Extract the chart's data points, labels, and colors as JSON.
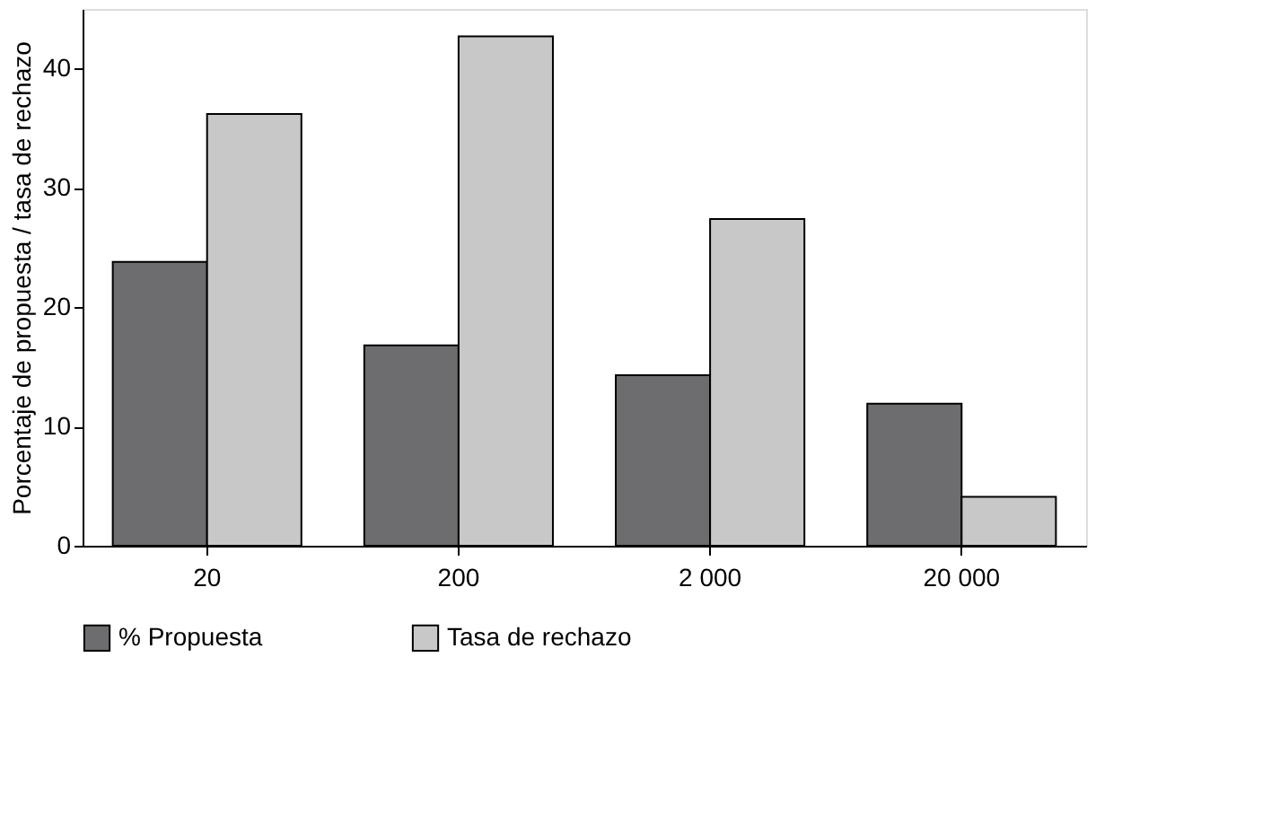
{
  "chart_data": {
    "type": "bar",
    "ylabel": "Porcentaje de propuesta / tasa de rechazo",
    "categories": [
      "20",
      "200",
      "2 000",
      "20 000"
    ],
    "series": [
      {
        "name": "% Propuesta",
        "color": "#6d6d6f",
        "values": [
          23.8,
          16.8,
          14.3,
          11.9
        ]
      },
      {
        "name": "Tasa de rechazo",
        "color": "#c8c8c8",
        "values": [
          36.2,
          42.7,
          27.4,
          4.1
        ]
      }
    ],
    "ylim": [
      0,
      45
    ],
    "yticks": [
      0,
      10,
      20,
      30,
      40
    ],
    "grid": false,
    "legend": "bottom"
  }
}
